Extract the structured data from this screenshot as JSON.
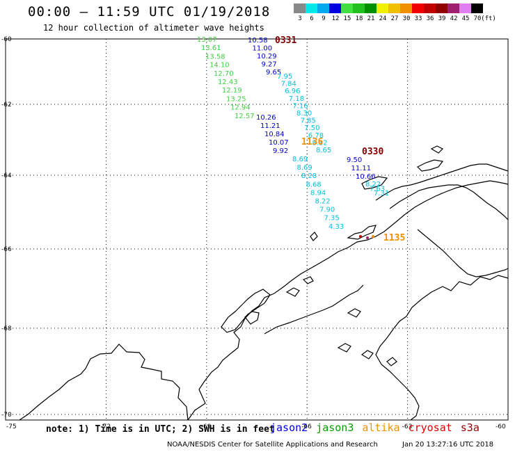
{
  "header": {
    "title": "00:00 — 11:59 UTC 01/19/2018",
    "subtitle": "12 hour collection of altimeter wave heights"
  },
  "legend": {
    "unit": "(ft)",
    "bins": [
      {
        "label": "3",
        "color": "#888888"
      },
      {
        "label": "6",
        "color": "#00e8e8"
      },
      {
        "label": "9",
        "color": "#00a8f0"
      },
      {
        "label": "12",
        "color": "#0000e0"
      },
      {
        "label": "15",
        "color": "#40e040"
      },
      {
        "label": "18",
        "color": "#20c020"
      },
      {
        "label": "21",
        "color": "#009000"
      },
      {
        "label": "24",
        "color": "#f0f000"
      },
      {
        "label": "27",
        "color": "#f0c000"
      },
      {
        "label": "30",
        "color": "#f09000"
      },
      {
        "label": "33",
        "color": "#f00000"
      },
      {
        "label": "36",
        "color": "#c00000"
      },
      {
        "label": "39",
        "color": "#900000"
      },
      {
        "label": "42",
        "color": "#a02070"
      },
      {
        "label": "45",
        "color": "#e080f0"
      },
      {
        "label": "70",
        "color": "#000000"
      }
    ]
  },
  "axes": {
    "lon_ticks": [
      "-75",
      "-72",
      "-69",
      "-66",
      "-63",
      "-60"
    ],
    "lat_ticks": [
      "-60",
      "-62",
      "-64",
      "-66",
      "-68",
      "-70"
    ],
    "grid": "dotted"
  },
  "passes": [
    {
      "time_label": "0331",
      "satellite": "jason2",
      "color": "#800000"
    },
    {
      "time_label": "1136",
      "satellite": "altika",
      "color": "#f09000"
    },
    {
      "time_label": "0330",
      "satellite": "jason2",
      "color": "#800000"
    },
    {
      "time_label": "1135",
      "satellite": "altika",
      "color": "#f09000"
    }
  ],
  "wave_heights": {
    "track_a_green": [
      "13.07",
      "13.61",
      "13.58",
      "14.10",
      "12.70",
      "12.43",
      "12.19",
      "13.25",
      "12.94",
      "12.57"
    ],
    "track_a_blue_north": [
      "10.58",
      "11.00",
      "10.29",
      "9.27",
      "9.65"
    ],
    "track_a_cyan": [
      "7.95",
      "7.84",
      "6.96",
      "7.18",
      "7.16",
      "8.30",
      "7.85",
      "7.50",
      "6.78",
      "8.12",
      "8.65"
    ],
    "track_a_blue_south": [
      "10.26",
      "11.21",
      "10.84",
      "10.07",
      "9.92"
    ],
    "track_a_cyan_south": [
      "8.69",
      "8.69",
      "8.28",
      "8.68",
      "8.94",
      "8.22",
      "7.90",
      "7.35",
      "4.33"
    ],
    "track_b_blue": [
      "9.50",
      "11.11",
      "10.66"
    ],
    "track_b_cyan": [
      "8.22",
      "7.63",
      "7.31"
    ]
  },
  "footer": {
    "note": "note: 1) Time is in UTC; 2) SWH is in feet",
    "satellites": [
      {
        "name": "jason2",
        "color": "#0000e0"
      },
      {
        "name": "jason3",
        "color": "#00a000"
      },
      {
        "name": "altika",
        "color": "#f09000"
      },
      {
        "name": "cryosat",
        "color": "#e00000"
      },
      {
        "name": "s3a",
        "color": "#900000"
      }
    ],
    "credit": "NOAA/NESDIS Center for Satellite Applications and Research",
    "timestamp": "Jan 20 13:27:16 UTC 2018"
  }
}
